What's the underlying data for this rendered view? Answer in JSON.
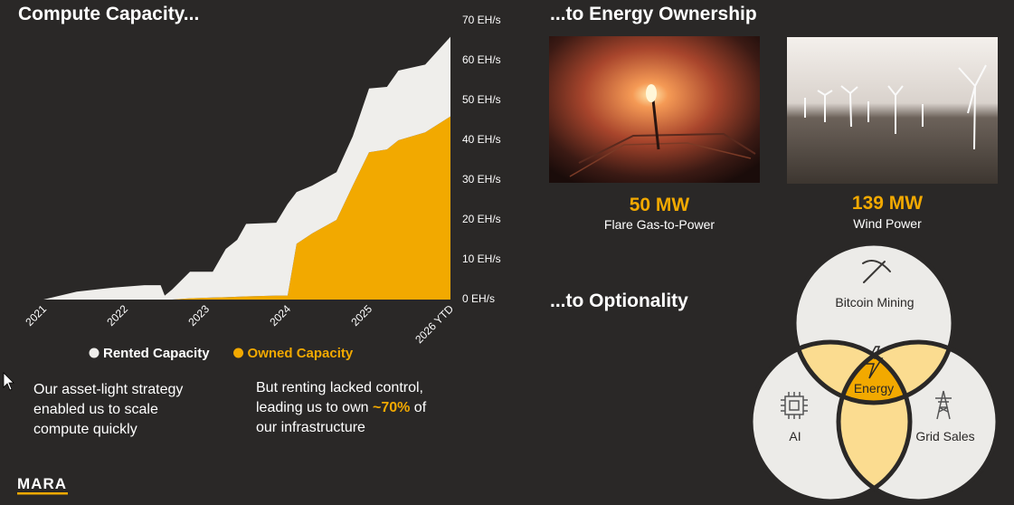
{
  "chart_data": {
    "type": "area",
    "stacked": true,
    "title": "Compute Capacity...",
    "x": [
      2021.0,
      2021.41,
      2021.86,
      2022.24,
      2022.44,
      2022.49,
      2022.58,
      2022.8,
      2023.08,
      2023.24,
      2023.38,
      2023.49,
      2023.86,
      2024.0,
      2024.11,
      2024.3,
      2024.6,
      2024.8,
      2025.0,
      2025.22,
      2025.36,
      2025.69,
      2026.0
    ],
    "series": [
      {
        "name": "Rented Capacity",
        "color": "#efeeeb",
        "values": [
          0,
          2,
          3,
          3.6,
          3.6,
          1,
          2.5,
          6.7,
          6.5,
          12.1,
          14.3,
          18.2,
          18.3,
          23,
          13,
          12,
          12,
          12.4,
          16,
          15.7,
          17.5,
          17,
          20
        ]
      },
      {
        "name": "Owned Capacity",
        "color": "#f2a900",
        "values": [
          0,
          0,
          0,
          0,
          0,
          0,
          0,
          0.3,
          0.5,
          0.6,
          0.7,
          0.8,
          1,
          1,
          14,
          16.6,
          20,
          28.6,
          37,
          37.7,
          40,
          42,
          46
        ]
      }
    ],
    "xlim": [
      2021,
      2026
    ],
    "xticks": [
      2021,
      2022,
      2023,
      2024,
      2025,
      {
        "value": 2026,
        "label": "2026 YTD"
      }
    ],
    "ylim": [
      0,
      70
    ],
    "yticks": [
      {
        "value": 0,
        "label": "0 EH/s"
      },
      {
        "value": 10,
        "label": "10 EH/s"
      },
      {
        "value": 20,
        "label": "20 EH/s"
      },
      {
        "value": 30,
        "label": "30 EH/s"
      },
      {
        "value": 40,
        "label": "40 EH/s"
      },
      {
        "value": 50,
        "label": "50 EH/s"
      },
      {
        "value": 60,
        "label": "60 EH/s"
      },
      {
        "value": 70,
        "label": "70 EH/s"
      }
    ],
    "grid": false
  },
  "left_text": [
    "Our asset-light strategy",
    "enabled us to scale",
    "compute quickly"
  ],
  "right_text": {
    "line1": "But renting lacked control,",
    "line2_before": "leading us to own ",
    "highlight": "~70%",
    "line2_after": " of",
    "line3": "our infrastructure"
  },
  "energy": {
    "title": "...to Energy Ownership",
    "items": [
      {
        "value": "50 MW",
        "label": "Flare Gas-to-Power"
      },
      {
        "value": "139 MW",
        "label": "Wind Power"
      }
    ]
  },
  "optionality": {
    "title": "...to Optionality",
    "bitcoin": "Bitcoin Mining",
    "energy": "Energy",
    "ai": "AI",
    "grid": "Grid Sales"
  },
  "logo": "MARA"
}
